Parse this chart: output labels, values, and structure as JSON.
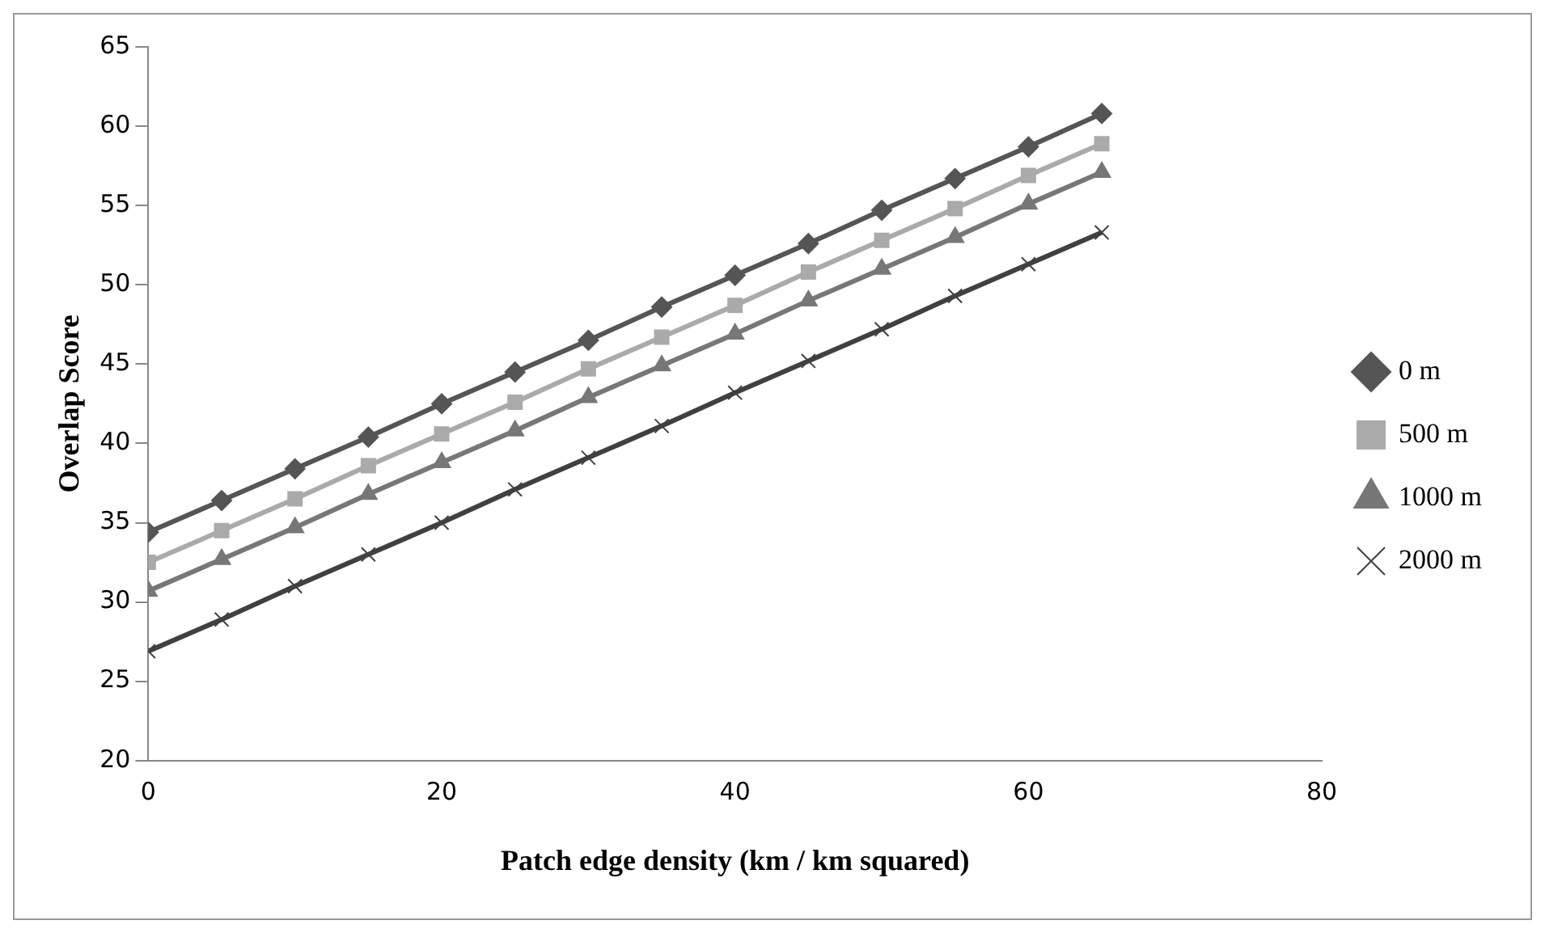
{
  "chart_data": {
    "type": "line",
    "xlabel": "Patch edge density (km / km squared)",
    "ylabel": "Overlap Score",
    "x": [
      0,
      5,
      10,
      15,
      20,
      25,
      30,
      35,
      40,
      45,
      50,
      55,
      60,
      65
    ],
    "series": [
      {
        "name": "0 m",
        "color": "#555555",
        "marker": "diamond",
        "values": [
          34.4,
          36.4,
          38.4,
          40.4,
          42.5,
          44.5,
          46.5,
          48.6,
          50.6,
          52.6,
          54.7,
          56.7,
          58.7,
          60.8
        ]
      },
      {
        "name": "500 m",
        "color": "#aaaaaa",
        "marker": "square",
        "values": [
          32.5,
          34.5,
          36.5,
          38.6,
          40.6,
          42.6,
          44.7,
          46.7,
          48.7,
          50.8,
          52.8,
          54.8,
          56.9,
          58.9
        ]
      },
      {
        "name": "1000 m",
        "color": "#777777",
        "marker": "triangle",
        "values": [
          30.7,
          32.7,
          34.7,
          36.8,
          38.8,
          40.8,
          42.9,
          44.9,
          46.9,
          49.0,
          51.0,
          53.0,
          55.1,
          57.1
        ]
      },
      {
        "name": "2000 m",
        "color": "#404040",
        "marker": "cross",
        "values": [
          26.9,
          28.9,
          31.0,
          33.0,
          35.0,
          37.1,
          39.1,
          41.1,
          43.2,
          45.2,
          47.2,
          49.3,
          51.3,
          53.3
        ]
      }
    ],
    "xlim": [
      0,
      80
    ],
    "xticks": [
      0,
      20,
      40,
      60,
      80
    ],
    "ylim": [
      20,
      65
    ],
    "yticks": [
      20,
      25,
      30,
      35,
      40,
      45,
      50,
      55,
      60,
      65
    ],
    "grid": false,
    "legend": "right",
    "line_style": "solid"
  }
}
